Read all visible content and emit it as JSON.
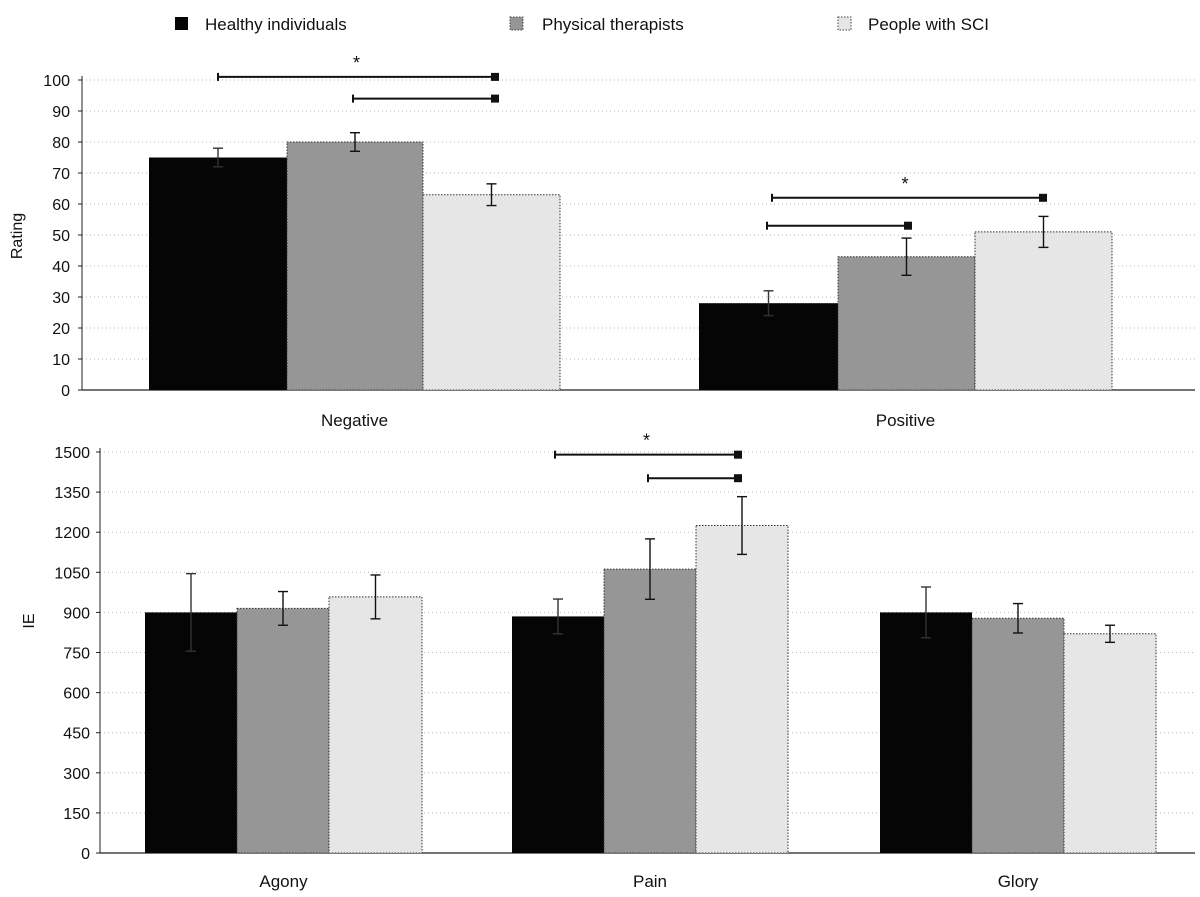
{
  "legend": [
    {
      "name": "Healthy individuals",
      "color": "#050505",
      "pattern": "solid"
    },
    {
      "name": "Physical therapists",
      "color": "#969696",
      "pattern": "dotted-border"
    },
    {
      "name": "People with SCI",
      "color": "#e6e6e6",
      "pattern": "dotted-border"
    }
  ],
  "chart_data": [
    {
      "type": "bar",
      "ylabel": "Rating",
      "xlabel": "",
      "ylim": [
        0,
        100
      ],
      "yticks": [
        0,
        10,
        20,
        30,
        40,
        50,
        60,
        70,
        80,
        90,
        100
      ],
      "grid": "dotted horizontal",
      "categories": [
        "Negative",
        "Positive"
      ],
      "series": [
        {
          "name": "Healthy individuals",
          "values": [
            75,
            28
          ],
          "errors": [
            3,
            4
          ]
        },
        {
          "name": "Physical therapists",
          "values": [
            80,
            43
          ],
          "errors": [
            3,
            6
          ]
        },
        {
          "name": "People with SCI",
          "values": [
            63,
            51
          ],
          "errors": [
            3.5,
            5
          ]
        }
      ],
      "annotations": [
        {
          "category": "Negative",
          "brackets": [
            {
              "from": "Healthy individuals",
              "to": "People with SCI",
              "level": 101
            },
            {
              "from": "Physical therapists",
              "to": "People with SCI",
              "level": 94
            }
          ],
          "mark": "*"
        },
        {
          "category": "Positive",
          "brackets": [
            {
              "from": "Healthy individuals",
              "to": "People with SCI",
              "level": 62
            },
            {
              "from": "Healthy individuals",
              "to": "Physical therapists",
              "level": 53
            }
          ],
          "mark": "*"
        }
      ]
    },
    {
      "type": "bar",
      "ylabel": "IE",
      "xlabel": "",
      "ylim": [
        0,
        1500
      ],
      "yticks": [
        0,
        150,
        300,
        450,
        600,
        750,
        900,
        1050,
        1200,
        1350,
        1500
      ],
      "grid": "dotted horizontal",
      "categories": [
        "Agony",
        "Pain",
        "Glory"
      ],
      "series": [
        {
          "name": "Healthy individuals",
          "values": [
            900,
            885,
            900
          ],
          "errors": [
            145,
            65,
            95
          ]
        },
        {
          "name": "Physical therapists",
          "values": [
            915,
            1062,
            878
          ],
          "errors": [
            63,
            113,
            55
          ]
        },
        {
          "name": "People with SCI",
          "values": [
            958,
            1225,
            820
          ],
          "errors": [
            82,
            108,
            32
          ]
        }
      ],
      "annotations": [
        {
          "category": "Pain",
          "brackets": [
            {
              "from": "Healthy individuals",
              "to": "People with SCI",
              "level": 1490
            },
            {
              "from": "Physical therapists",
              "to": "People with SCI",
              "level": 1402
            }
          ],
          "mark": "*"
        }
      ]
    }
  ]
}
